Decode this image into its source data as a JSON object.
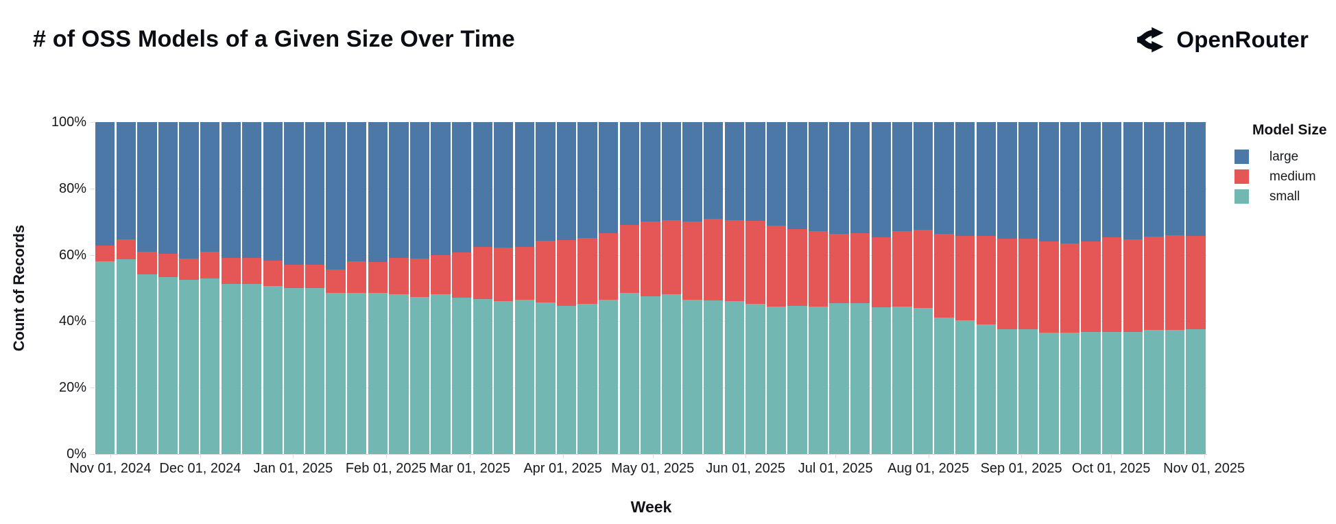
{
  "header": {
    "title": "# of OSS Models of a Given Size Over Time",
    "brand": "OpenRouter"
  },
  "icons": {
    "brand_logo": "openrouter-route-arrows"
  },
  "chart_data": {
    "type": "bar",
    "stacked": true,
    "normalized_percent": true,
    "title": "# of OSS Models of a Given Size Over Time",
    "xlabel": "Week",
    "ylabel": "Count of Records",
    "ylim": [
      0,
      100
    ],
    "grid": true,
    "y_ticks": [
      {
        "label": "0%",
        "value": 0
      },
      {
        "label": "20%",
        "value": 20
      },
      {
        "label": "40%",
        "value": 40
      },
      {
        "label": "60%",
        "value": 60
      },
      {
        "label": "80%",
        "value": 80
      },
      {
        "label": "100%",
        "value": 100
      }
    ],
    "x_axis": {
      "start_date": "2024-10-27",
      "end_date": "2025-11-02",
      "month_ticks": [
        {
          "label": "Nov 01, 2024",
          "date": "2024-11-01"
        },
        {
          "label": "Dec 01, 2024",
          "date": "2024-12-01"
        },
        {
          "label": "Jan 01, 2025",
          "date": "2025-01-01"
        },
        {
          "label": "Feb 01, 2025",
          "date": "2025-02-01"
        },
        {
          "label": "Mar 01, 2025",
          "date": "2025-03-01"
        },
        {
          "label": "Apr 01, 2025",
          "date": "2025-04-01"
        },
        {
          "label": "May 01, 2025",
          "date": "2025-05-01"
        },
        {
          "label": "Jun 01, 2025",
          "date": "2025-06-01"
        },
        {
          "label": "Jul 01, 2025",
          "date": "2025-07-01"
        },
        {
          "label": "Aug 01, 2025",
          "date": "2025-08-01"
        },
        {
          "label": "Sep 01, 2025",
          "date": "2025-09-01"
        },
        {
          "label": "Oct 01, 2025",
          "date": "2025-10-01"
        },
        {
          "label": "Nov 01, 2025",
          "date": "2025-11-01"
        }
      ]
    },
    "legend": {
      "title": "Model Size",
      "position": "right",
      "entries": [
        {
          "label": "large",
          "color": "#4c78a8"
        },
        {
          "label": "medium",
          "color": "#e45756"
        },
        {
          "label": "small",
          "color": "#72b7b2"
        }
      ]
    },
    "x": [
      "2024-10-27",
      "2024-11-03",
      "2024-11-10",
      "2024-11-17",
      "2024-11-24",
      "2024-12-01",
      "2024-12-08",
      "2024-12-15",
      "2024-12-22",
      "2024-12-29",
      "2025-01-05",
      "2025-01-12",
      "2025-01-19",
      "2025-01-26",
      "2025-02-02",
      "2025-02-09",
      "2025-02-16",
      "2025-02-23",
      "2025-03-02",
      "2025-03-09",
      "2025-03-16",
      "2025-03-23",
      "2025-03-30",
      "2025-04-06",
      "2025-04-13",
      "2025-04-20",
      "2025-04-27",
      "2025-05-04",
      "2025-05-11",
      "2025-05-18",
      "2025-05-25",
      "2025-06-01",
      "2025-06-08",
      "2025-06-15",
      "2025-06-22",
      "2025-06-29",
      "2025-07-06",
      "2025-07-13",
      "2025-07-20",
      "2025-07-27",
      "2025-08-03",
      "2025-08-10",
      "2025-08-17",
      "2025-08-24",
      "2025-08-31",
      "2025-09-07",
      "2025-09-14",
      "2025-09-21",
      "2025-09-28",
      "2025-10-05",
      "2025-10-12",
      "2025-10-19",
      "2025-10-26"
    ],
    "series": [
      {
        "name": "small",
        "color": "#72b7b2",
        "values": [
          58.1,
          58.6,
          54.2,
          53.3,
          52.4,
          52.9,
          51.3,
          51.2,
          50.7,
          50.0,
          50.0,
          48.5,
          48.5,
          48.5,
          48.2,
          47.3,
          48.2,
          47.2,
          46.7,
          46.0,
          46.4,
          45.6,
          44.7,
          45.2,
          46.4,
          48.5,
          47.6,
          48.2,
          46.4,
          46.3,
          46.0,
          45.2,
          44.4,
          44.7,
          44.4,
          45.4,
          45.4,
          44.3,
          44.5,
          44.0,
          41.2,
          40.3,
          39.0,
          37.7,
          37.7,
          36.6,
          36.6,
          36.7,
          36.7,
          36.8,
          37.3,
          37.3,
          37.7
        ]
      },
      {
        "name": "medium",
        "color": "#e45756",
        "values": [
          4.8,
          6.0,
          6.8,
          7.0,
          6.5,
          8.0,
          7.7,
          7.8,
          7.5,
          7.1,
          7.1,
          7.1,
          9.6,
          9.3,
          10.9,
          11.5,
          11.7,
          13.6,
          15.7,
          16.2,
          16.0,
          18.7,
          19.8,
          19.8,
          20.1,
          20.6,
          22.4,
          22.2,
          23.6,
          24.5,
          24.4,
          25.1,
          24.3,
          23.1,
          22.8,
          20.9,
          21.1,
          21.0,
          22.7,
          23.6,
          25.2,
          25.3,
          26.6,
          27.1,
          27.2,
          27.4,
          26.8,
          27.4,
          28.5,
          27.9,
          28.1,
          28.7,
          27.9
        ]
      },
      {
        "name": "large",
        "color": "#4c78a8",
        "values": [
          37.1,
          35.4,
          39.0,
          39.7,
          41.1,
          39.1,
          41.0,
          41.0,
          41.8,
          42.9,
          42.9,
          44.4,
          41.9,
          42.2,
          40.9,
          41.2,
          40.1,
          39.2,
          37.6,
          37.8,
          37.6,
          35.7,
          35.5,
          35.0,
          33.5,
          30.9,
          30.0,
          29.6,
          30.0,
          29.2,
          29.6,
          29.7,
          31.3,
          32.2,
          32.8,
          33.7,
          33.5,
          34.7,
          32.8,
          32.4,
          33.6,
          34.4,
          34.4,
          35.2,
          35.1,
          36.0,
          36.6,
          35.9,
          34.8,
          35.3,
          34.6,
          34.0,
          34.4
        ]
      }
    ]
  }
}
